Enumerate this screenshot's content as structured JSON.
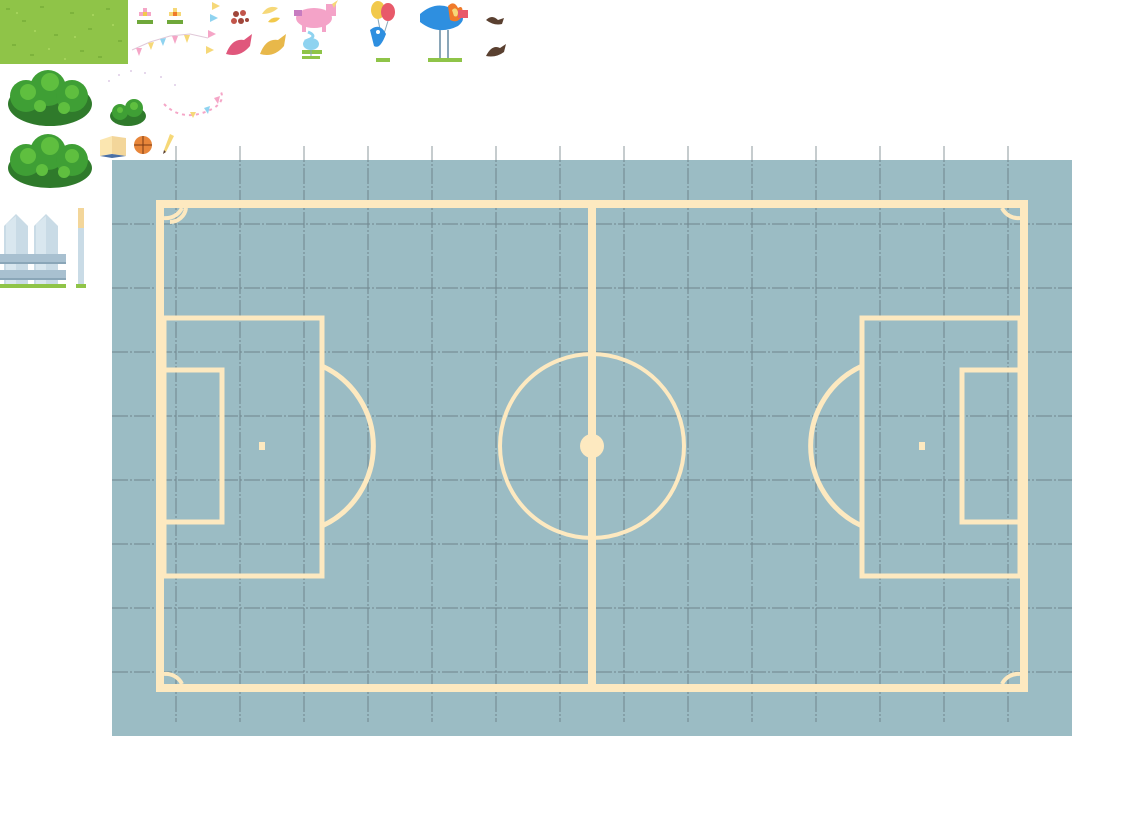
{
  "colors": {
    "background": "#ffffff",
    "grass_light": "#8fc448",
    "grass_dark": "#6fa83a",
    "bush_light": "#5fbf3f",
    "bush_mid": "#3f9f35",
    "bush_dark": "#2f7a2b",
    "field_fill": "#9bbcc4",
    "field_line": "#fde9c0",
    "grid_line": "#5d6f76",
    "fence_light": "#c9dbe6",
    "fence_mid": "#a8c0d0",
    "fence_dark": "#8aa6b8",
    "pennant_pink": "#f5a6c7",
    "pennant_yellow": "#f6d878",
    "pennant_blue": "#8fd3f0",
    "balloon_red": "#e85a6a",
    "balloon_yellow": "#f2c94c",
    "fish_blue": "#2e8fe0",
    "fire_orange": "#f07a2a",
    "unicorn_pink": "#f4a3c8"
  },
  "palette": {
    "sprites": [
      {
        "name": "grass-tile-icon"
      },
      {
        "name": "flower-pink-icon"
      },
      {
        "name": "flower-yellow-icon"
      },
      {
        "name": "pennant-flag-icon"
      },
      {
        "name": "dot-cluster-icon"
      },
      {
        "name": "leaf-sprout-icon"
      },
      {
        "name": "unicorn-spring-rider-icon"
      },
      {
        "name": "balloons-icon"
      },
      {
        "name": "fire-fish-sign-icon"
      },
      {
        "name": "bird-silhouette-icon"
      },
      {
        "name": "pennant-bunting-icon"
      },
      {
        "name": "red-bird-icon"
      },
      {
        "name": "yellow-bird-icon"
      },
      {
        "name": "blue-fish-balloon-icon"
      },
      {
        "name": "bush-large-icon"
      },
      {
        "name": "bush-small-icon"
      },
      {
        "name": "confetti-icon"
      },
      {
        "name": "open-book-icon"
      },
      {
        "name": "basketball-icon"
      },
      {
        "name": "pencil-icon"
      },
      {
        "name": "fence-icon"
      },
      {
        "name": "fence-post-icon"
      }
    ]
  },
  "field": {
    "name": "soccer-field"
  }
}
